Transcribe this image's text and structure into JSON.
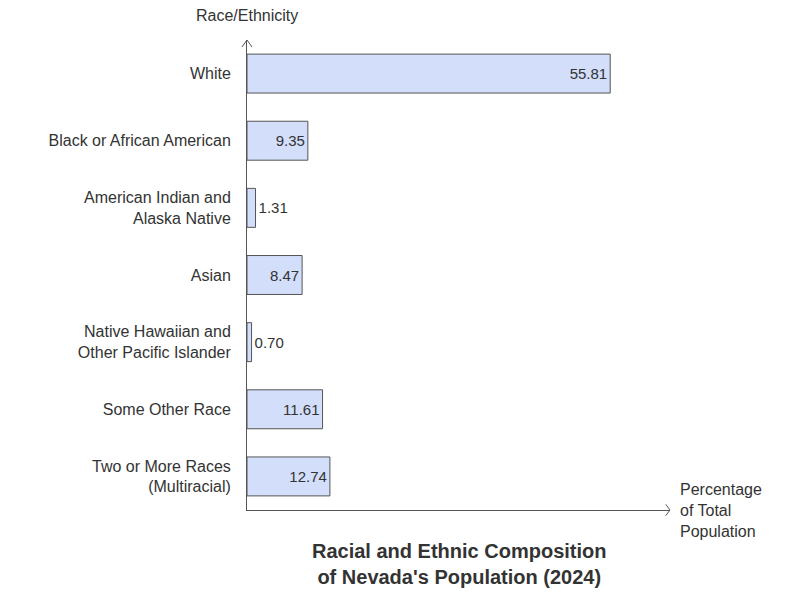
{
  "chart_data": {
    "type": "bar",
    "title": "Racial and Ethnic Composition\nof Nevada's Population (2024)",
    "xlabel": "Percentage\nof Total\nPopulation",
    "ylabel": "Race/Ethnicity",
    "categories": [
      "White",
      "Black or African American",
      "American Indian and\nAlaska Native",
      "Asian",
      "Native Hawaiian and\nOther Pacific Islander",
      "Some Other Race",
      "Two or More Races\n(Multiracial)"
    ],
    "values": [
      55.81,
      9.35,
      1.31,
      8.47,
      0.7,
      11.61,
      12.74
    ],
    "value_labels": [
      "55.81",
      "9.35",
      "1.31",
      "8.47",
      "0.70",
      "11.61",
      "12.74"
    ],
    "color": "#d2defa",
    "orientation": "horizontal",
    "data_labels": true,
    "tick_labels": "y",
    "grid": false,
    "xlim": [
      0,
      65
    ],
    "xticks": []
  }
}
